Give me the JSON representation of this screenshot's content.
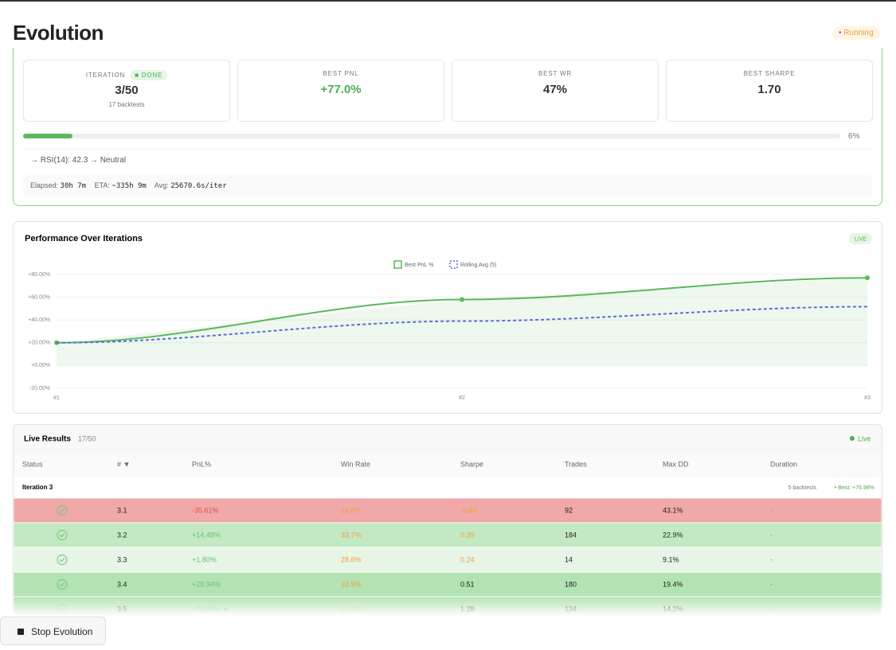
{
  "header": {
    "title": "Evolution",
    "status": "Running"
  },
  "stats": [
    {
      "label": "ITERATION",
      "badge": "DONE",
      "value": "3/50",
      "sub": "17 backtests"
    },
    {
      "label": "BEST PNL",
      "value": "+77.0%"
    },
    {
      "label": "BEST WR",
      "value": "47%"
    },
    {
      "label": "BEST SHARPE",
      "value": "1.70"
    }
  ],
  "progress": {
    "value": 6,
    "label": "6%"
  },
  "log": "→ RSI(14): 42.3 → Neutral",
  "timing": {
    "elapsed_label": "Elapsed:",
    "elapsed": "30h 7m",
    "eta_label": "ETA:",
    "eta": "~335h 9m",
    "avg_label": "Avg:",
    "avg": "25670.6s/iter"
  },
  "chart_data": {
    "type": "line",
    "title": "Performance Over Iterations",
    "badge": "LIVE",
    "categories": [
      "#1",
      "#2",
      "#3"
    ],
    "series": [
      {
        "name": "Best PnL %",
        "color": "#5cb85c",
        "values": [
          20,
          58,
          77
        ]
      },
      {
        "name": "Rolling Avg (5)",
        "color": "#5b6fd6",
        "values": [
          20,
          39,
          51.7
        ]
      }
    ],
    "ylim": [
      -20,
      80
    ],
    "yticks": [
      {
        "value": -20,
        "label": "-20.00%"
      },
      {
        "value": 0,
        "label": "+0.00%"
      },
      {
        "value": 20,
        "label": "+20.00%"
      },
      {
        "value": 40,
        "label": "+40.00%"
      },
      {
        "value": 60,
        "label": "+60.00%"
      },
      {
        "value": 80,
        "label": "+80.00%"
      }
    ],
    "grid": true
  },
  "table": {
    "title": "Live Results",
    "count": "17/50",
    "live": "Live",
    "columns": [
      "Status",
      "# ▼",
      "PnL%",
      "Win Rate",
      "Sharpe",
      "Trades",
      "Max DD",
      "Duration"
    ],
    "group": {
      "label": "Iteration 3",
      "backtests": "5 backtests",
      "best": "• Best: +76.98%"
    },
    "rows": [
      {
        "id": "3.1",
        "pnl": "-35.61%",
        "win_rate": "19.0%",
        "sharpe": -0.89,
        "trades": 92,
        "max_dd": "43.1%",
        "duration": "-",
        "color": "#f0a8a8"
      },
      {
        "id": "3.2",
        "pnl": "+14.48%",
        "win_rate": "33.7%",
        "sharpe": 0.39,
        "trades": 184,
        "max_dd": "22.9%",
        "duration": "-",
        "color": "#c3e9c3"
      },
      {
        "id": "3.3",
        "pnl": "+1.80%",
        "win_rate": "28.6%",
        "sharpe": 0.24,
        "trades": 14,
        "max_dd": "9.1%",
        "duration": "-",
        "color": "#e6f5e6"
      },
      {
        "id": "3.4",
        "pnl": "+28.94%",
        "win_rate": "33.9%",
        "sharpe": 0.51,
        "trades": 180,
        "max_dd": "19.4%",
        "duration": "-",
        "color": "#b3e3b3"
      },
      {
        "id": "3.5",
        "pnl": "+76.98% ★",
        "win_rate": "39.6%",
        "sharpe": 1.28,
        "trades": 134,
        "max_dd": "14.2%",
        "duration": "-",
        "color": "#a9dfa9"
      }
    ]
  },
  "button": "Stop Evolution"
}
